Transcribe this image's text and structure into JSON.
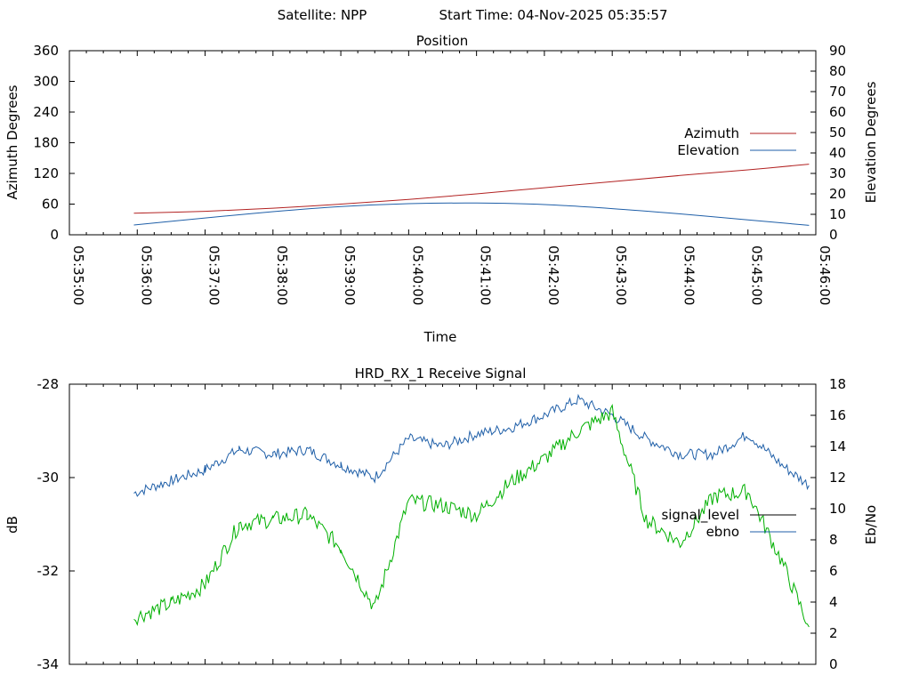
{
  "header": {
    "satellite_label": "Satellite: NPP",
    "start_time_label": "Start Time: 04-Nov-2025 05:35:57"
  },
  "chart_data": [
    {
      "type": "line",
      "title": "Position",
      "xlabel": "Time",
      "ylabel": "Azimuth Degrees",
      "y2label": "Elevation Degrees",
      "x_ticks": [
        "05:35:00",
        "05:36:00",
        "05:37:00",
        "05:38:00",
        "05:39:00",
        "05:40:00",
        "05:41:00",
        "05:42:00",
        "05:43:00",
        "05:44:00",
        "05:45:00",
        "05:46:00"
      ],
      "ylim": [
        0,
        360
      ],
      "y_ticks": [
        "0",
        "60",
        "120",
        "180",
        "240",
        "300",
        "360"
      ],
      "y2lim": [
        0,
        90
      ],
      "y2_ticks": [
        "0",
        "10",
        "20",
        "30",
        "40",
        "50",
        "60",
        "70",
        "80",
        "90"
      ],
      "legend": "right",
      "x_minutes": [
        0.95,
        2,
        3,
        4,
        5,
        6,
        7,
        8,
        9,
        10,
        10.9
      ],
      "series": [
        {
          "name": "Azimuth",
          "axis": "left",
          "color": "#b22222",
          "values": [
            42,
            46,
            52,
            60,
            69,
            80,
            92,
            104,
            116,
            127,
            138
          ]
        },
        {
          "name": "Elevation",
          "axis": "right",
          "color": "#1f5fa8",
          "values": [
            4.8,
            8.2,
            11.3,
            13.8,
            15.2,
            15.5,
            14.8,
            12.8,
            10.2,
            7.3,
            4.6
          ]
        }
      ]
    },
    {
      "type": "line",
      "title": "HRD_RX_1 Receive Signal",
      "ylabel": "dB",
      "y2label": "Eb/No",
      "ylim": [
        -34,
        -28
      ],
      "y_ticks": [
        "-28",
        "-30",
        "-32",
        "-34"
      ],
      "y2lim": [
        0,
        18
      ],
      "y2_ticks": [
        "0",
        "2",
        "4",
        "6",
        "8",
        "10",
        "12",
        "14",
        "16",
        "18"
      ],
      "legend": "right",
      "x_minutes": [
        0.95,
        1.5,
        2,
        2.5,
        3,
        3.5,
        4,
        4.5,
        5,
        5.5,
        6,
        6.5,
        7,
        7.5,
        8,
        8.5,
        9,
        9.5,
        10,
        10.5,
        10.9
      ],
      "series": [
        {
          "name": "signal_level",
          "axis": "left",
          "color": "#000000",
          "values": [
            null,
            null,
            null,
            null,
            null,
            null,
            null,
            null,
            null,
            null,
            null,
            null,
            null,
            null,
            null,
            null,
            null,
            null,
            null,
            null,
            null
          ]
        },
        {
          "name": "ebno",
          "axis": "right",
          "color": "#1f5fa8",
          "values": [
            11.0,
            11.8,
            12.5,
            13.8,
            13.5,
            13.8,
            12.8,
            12.0,
            14.5,
            14.0,
            14.8,
            15.2,
            16.0,
            17.0,
            16.0,
            14.5,
            13.5,
            13.5,
            14.8,
            12.8,
            11.5
          ]
        },
        {
          "name": "signal_level_trace",
          "axis": "left",
          "color": "#00b000",
          "values": [
            -33.0,
            -32.7,
            -32.3,
            -31.0,
            -30.9,
            -30.8,
            -31.5,
            -32.8,
            -30.5,
            -30.6,
            -30.8,
            -30.1,
            -29.6,
            -29.0,
            -28.6,
            -30.9,
            -31.4,
            -30.4,
            -30.3,
            -31.8,
            -33.2
          ]
        }
      ]
    }
  ]
}
